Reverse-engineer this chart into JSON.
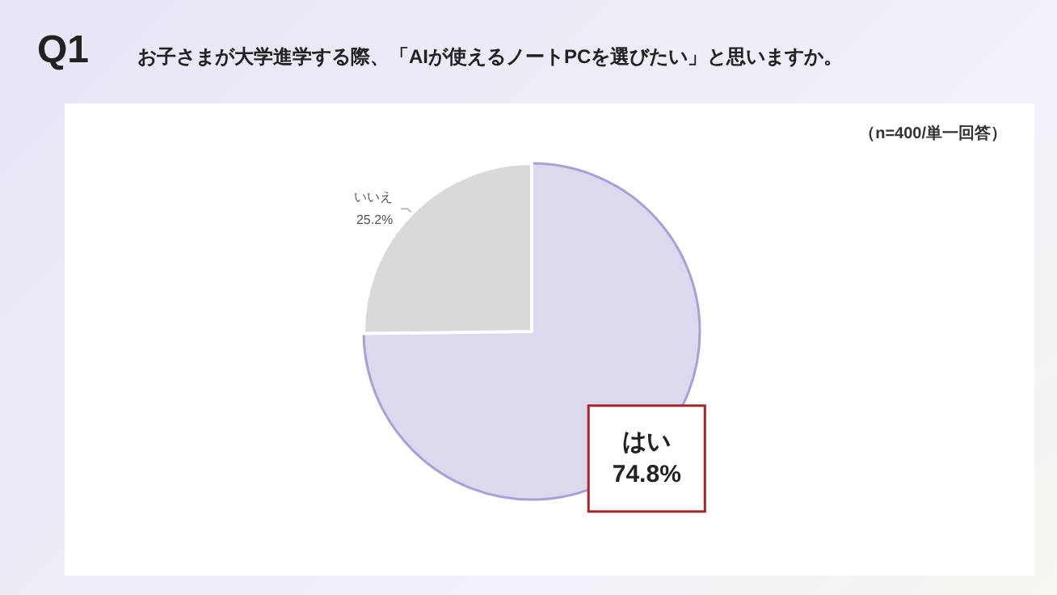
{
  "chart_data": {
    "type": "pie",
    "title": "Q1",
    "subtitle": "お子さまが大学進学する際、「AIが使えるノートPCを選びたい」と思いますか。",
    "annotations": [
      "（n=400/単一回答）"
    ],
    "categories": [
      "はい",
      "いいえ"
    ],
    "values": [
      74.8,
      25.2
    ],
    "value_labels": [
      "74.8%",
      "25.2%"
    ],
    "colors": [
      "#dcd8ee",
      "#d9d9d9"
    ]
  }
}
